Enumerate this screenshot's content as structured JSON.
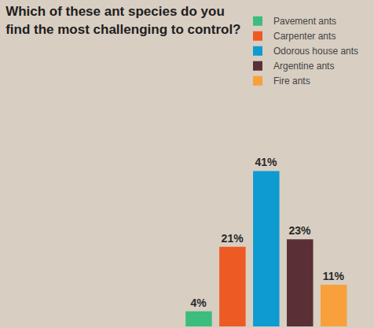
{
  "chart_data": {
    "type": "bar",
    "title": "Which of these ant species do you\nfind the most challenging to control?",
    "categories": [
      "Pavement ants",
      "Carpenter ants",
      "Odorous house ants",
      "Argentine ants",
      "Fire ants"
    ],
    "values": [
      4,
      21,
      41,
      23,
      11
    ],
    "value_labels": [
      "4%",
      "21%",
      "41%",
      "23%",
      "11%"
    ],
    "colors": [
      "#3dbd7d",
      "#ee5a24",
      "#0d9bd1",
      "#5a3036",
      "#f7a03c"
    ],
    "ylim": [
      0,
      55
    ],
    "data_labels": true,
    "tick_labels": false,
    "legend": "top right"
  }
}
